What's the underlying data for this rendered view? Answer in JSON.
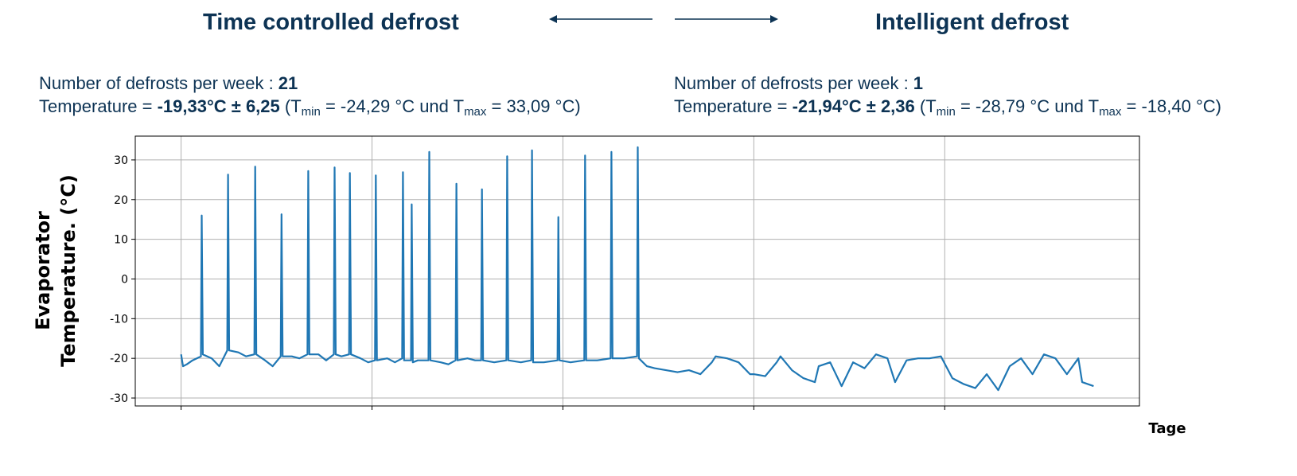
{
  "header": {
    "left": {
      "title": "Time controlled defrost",
      "count_label": "Number of defrosts per week : ",
      "count_value": "21",
      "temp_label": "Temperature = ",
      "temp_value": "-19,33°C ± 6,25",
      "temp_a": " (T",
      "sub_min": "min",
      "temp_b": " = -24,29 °C und T",
      "sub_max": "max",
      "temp_c": " = 33,09 °C)"
    },
    "right": {
      "title": "Intelligent defrost",
      "count_label": "Number of defrosts per week : ",
      "count_value": "1",
      "temp_label": "Temperature = ",
      "temp_value": "-21,94°C ± 2,36",
      "temp_a": " (T",
      "sub_min": "min",
      "temp_b": " = -28,79 °C und T",
      "sub_max": "max",
      "temp_c": " = -18,40 °C)"
    }
  },
  "chart_data": {
    "type": "line",
    "ylabel": [
      "Evaporator",
      "Temperature. (°C)"
    ],
    "xlabel": "Tage",
    "xlim": [
      -1.2,
      25.1
    ],
    "xticks": [
      0,
      5,
      10,
      15,
      20
    ],
    "ylim": [
      -32,
      36
    ],
    "yticks": [
      -30,
      -20,
      -10,
      0,
      10,
      20,
      30
    ],
    "grid": true,
    "x": [
      0,
      0.05,
      0.15,
      0.3,
      0.52,
      0.54,
      0.57,
      0.8,
      1.0,
      1.21,
      1.23,
      1.26,
      1.5,
      1.7,
      1.92,
      1.94,
      1.97,
      2.2,
      2.4,
      2.61,
      2.63,
      2.66,
      2.9,
      3.1,
      3.31,
      3.33,
      3.36,
      3.6,
      3.8,
      4.0,
      4.02,
      4.05,
      4.2,
      4.4,
      4.42,
      4.45,
      4.7,
      4.9,
      5.08,
      5.1,
      5.13,
      5.4,
      5.6,
      5.79,
      5.81,
      5.84,
      6.02,
      6.04,
      6.07,
      6.2,
      6.48,
      6.5,
      6.53,
      6.8,
      7.0,
      7.19,
      7.21,
      7.24,
      7.5,
      7.7,
      7.86,
      7.88,
      7.91,
      8.2,
      8.52,
      8.54,
      8.57,
      8.9,
      9.17,
      9.19,
      9.22,
      9.5,
      9.86,
      9.88,
      9.91,
      10.2,
      10.56,
      10.58,
      10.61,
      10.9,
      11.25,
      11.27,
      11.3,
      11.6,
      11.94,
      11.96,
      11.99,
      12.2,
      12.4,
      12.7,
      13.0,
      13.3,
      13.6,
      13.9,
      14.0,
      14.3,
      14.6,
      14.9,
      15.0,
      15.3,
      15.6,
      15.7,
      16.0,
      16.3,
      16.6,
      16.7,
      17.0,
      17.3,
      17.6,
      17.9,
      18.2,
      18.5,
      18.7,
      19.0,
      19.3,
      19.6,
      19.9,
      20.2,
      20.5,
      20.8,
      21.1,
      21.4,
      21.7,
      22.0,
      22.3,
      22.6,
      22.9,
      23.2,
      23.5,
      23.6,
      23.9
    ],
    "series": [
      {
        "color": "#1f77b4",
        "values": [
          -19,
          -22,
          -21.5,
          -20.5,
          -19.5,
          16,
          -19,
          -20,
          -22,
          -18,
          26.3,
          -18,
          -18.5,
          -19.5,
          -19,
          28.3,
          -19,
          -20.5,
          -22,
          -19.5,
          16.3,
          -19.5,
          -19.5,
          -20,
          -19,
          27.2,
          -19,
          -19,
          -20.5,
          -19,
          28.1,
          -19,
          -19.5,
          -19,
          26.7,
          -19,
          -20,
          -21,
          -20.5,
          26.1,
          -20.5,
          -20,
          -21,
          -20,
          26.9,
          -20.5,
          -20.5,
          18.8,
          -21,
          -20.5,
          -20.5,
          32,
          -20.5,
          -21,
          -21.5,
          -20.5,
          24,
          -20.5,
          -20,
          -20.5,
          -20.5,
          22.6,
          -20.5,
          -21,
          -20.5,
          30.9,
          -20.5,
          -21,
          -20.5,
          32.4,
          -21,
          -21,
          -20.5,
          15.6,
          -20.5,
          -21,
          -20.5,
          31.1,
          -20.5,
          -20.5,
          -20,
          32,
          -20,
          -20,
          -19.5,
          33.2,
          -20,
          -22,
          -22.5,
          -23,
          -23.5,
          -23,
          -24,
          -21,
          -19.5,
          -20,
          -21,
          -24,
          -24,
          -24.5,
          -21,
          -19.5,
          -23,
          -25,
          -26,
          -22,
          -21,
          -27,
          -21,
          -22.5,
          -19,
          -20,
          -26,
          -20.5,
          -20,
          -20,
          -19.5,
          -25,
          -26.5,
          -27.5,
          -24,
          -28,
          -22,
          -20,
          -24,
          -19,
          -20,
          -24,
          -20,
          -26,
          -27
        ]
      }
    ]
  }
}
